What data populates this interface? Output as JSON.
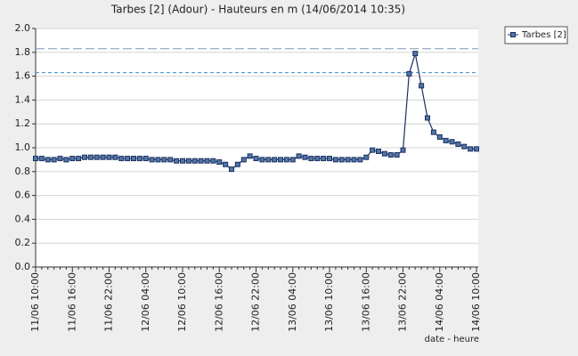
{
  "chart_data": {
    "type": "line",
    "title": "Tarbes [2] (Adour) - Hauteurs en m (14/06/2014 10:35)",
    "x_label": "date - heure",
    "categories": [
      "11/06 10:00",
      null,
      null,
      null,
      null,
      null,
      "11/06 16:00",
      null,
      null,
      null,
      null,
      null,
      "11/06 22:00",
      null,
      null,
      null,
      null,
      null,
      "12/06 04:00",
      null,
      null,
      null,
      null,
      null,
      "12/06 10:00",
      null,
      null,
      null,
      null,
      null,
      "12/06 16:00",
      null,
      null,
      null,
      null,
      null,
      "12/06 22:00",
      null,
      null,
      null,
      null,
      null,
      "13/06 04:00",
      null,
      null,
      null,
      null,
      null,
      "13/06 10:00",
      null,
      null,
      null,
      null,
      null,
      "13/06 16:00",
      null,
      null,
      null,
      null,
      null,
      "13/06 22:00",
      null,
      null,
      null,
      null,
      null,
      "14/06 04:00",
      null,
      null,
      null,
      null,
      null,
      "14/06 10:00"
    ],
    "series": [
      {
        "name": "Tarbes [2]",
        "color": "#1c2f5e",
        "marker_color": "#4f76a8",
        "values": [
          0.91,
          0.91,
          0.9,
          0.9,
          0.91,
          0.9,
          0.91,
          0.91,
          0.92,
          0.92,
          0.92,
          0.92,
          0.92,
          0.92,
          0.91,
          0.91,
          0.91,
          0.91,
          0.91,
          0.9,
          0.9,
          0.9,
          0.9,
          0.89,
          0.89,
          0.89,
          0.89,
          0.89,
          0.89,
          0.89,
          0.88,
          0.86,
          0.82,
          0.86,
          0.9,
          0.93,
          0.91,
          0.9,
          0.9,
          0.9,
          0.9,
          0.9,
          0.9,
          0.93,
          0.92,
          0.91,
          0.91,
          0.91,
          0.91,
          0.9,
          0.9,
          0.9,
          0.9,
          0.9,
          0.92,
          0.98,
          0.97,
          0.95,
          0.94,
          0.94,
          0.98,
          1.62,
          1.79,
          1.52,
          1.25,
          1.13,
          1.09,
          1.06,
          1.05,
          1.03,
          1.01,
          0.99,
          0.99
        ]
      }
    ],
    "reference_lines": [
      {
        "value": 1.83,
        "color": "#7f98b8",
        "dash": "10,4"
      },
      {
        "value": 1.63,
        "color": "#3a8cc8",
        "dash": "4,3"
      }
    ],
    "ylim": [
      0,
      2
    ],
    "yticks": [
      {
        "value": 0,
        "label": "0.0"
      },
      0.2,
      0.4,
      0.6,
      0.8,
      {
        "value": 1,
        "label": "1.0"
      },
      1.2,
      1.4,
      1.6,
      1.8,
      {
        "value": 2,
        "label": "2.0"
      }
    ],
    "grid": true,
    "legend": "top-right"
  }
}
